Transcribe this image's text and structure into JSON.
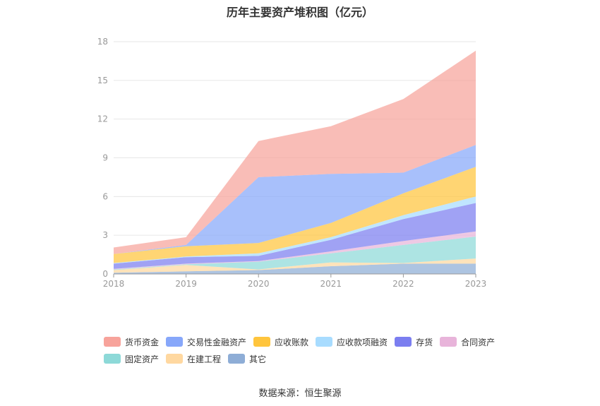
{
  "chart_data": {
    "type": "area",
    "stacked": true,
    "title": "历年主要资产堆积图（亿元）",
    "xlabel": "",
    "ylabel": "",
    "categories": [
      "2018",
      "2019",
      "2020",
      "2021",
      "2022",
      "2023"
    ],
    "ylim": [
      0,
      18
    ],
    "yticks": [
      0,
      3,
      6,
      9,
      12,
      15,
      18
    ],
    "grid": true,
    "legend_position": "bottom",
    "series": [
      {
        "name": "其它",
        "color": "#8eadd6",
        "values": [
          0.1,
          0.2,
          0.3,
          0.6,
          0.8,
          0.8
        ]
      },
      {
        "name": "在建工程",
        "color": "#ffd8a0",
        "values": [
          0.2,
          0.5,
          0.05,
          0.3,
          0.05,
          0.4
        ]
      },
      {
        "name": "固定资产",
        "color": "#8dd9d8",
        "values": [
          0.05,
          0.05,
          0.6,
          0.7,
          1.4,
          1.7
        ]
      },
      {
        "name": "合同资产",
        "color": "#e8b4da",
        "values": [
          0.05,
          0.05,
          0.05,
          0.15,
          0.3,
          0.4
        ]
      },
      {
        "name": "存货",
        "color": "#7b7ef0",
        "values": [
          0.4,
          0.5,
          0.4,
          0.9,
          1.7,
          2.2
        ]
      },
      {
        "name": "应收款项融资",
        "color": "#a8dcff",
        "values": [
          0.05,
          0.05,
          0.2,
          0.2,
          0.3,
          0.5
        ]
      },
      {
        "name": "应收账款",
        "color": "#ffc53d",
        "values": [
          0.7,
          0.8,
          0.8,
          1.1,
          1.7,
          2.3
        ]
      },
      {
        "name": "交易性金融资产",
        "color": "#87a7fa",
        "values": [
          0.0,
          0.1,
          5.1,
          3.8,
          1.6,
          1.7
        ]
      },
      {
        "name": "货币资金",
        "color": "#f7a39b",
        "values": [
          0.5,
          0.6,
          2.8,
          3.7,
          5.7,
          7.3
        ]
      }
    ]
  },
  "legend": {
    "rows": [
      [
        {
          "label": "货币资金",
          "color": "#f7a39b"
        },
        {
          "label": "交易性金融资产",
          "color": "#87a7fa"
        },
        {
          "label": "应收账款",
          "color": "#ffc53d"
        },
        {
          "label": "应收款项融资",
          "color": "#a8dcff"
        },
        {
          "label": "存货",
          "color": "#7b7ef0"
        },
        {
          "label": "合同资产",
          "color": "#e8b4da"
        }
      ],
      [
        {
          "label": "固定资产",
          "color": "#8dd9d8"
        },
        {
          "label": "在建工程",
          "color": "#ffd8a0"
        },
        {
          "label": "其它",
          "color": "#8eadd6"
        }
      ]
    ]
  },
  "source": "数据来源：恒生聚源"
}
